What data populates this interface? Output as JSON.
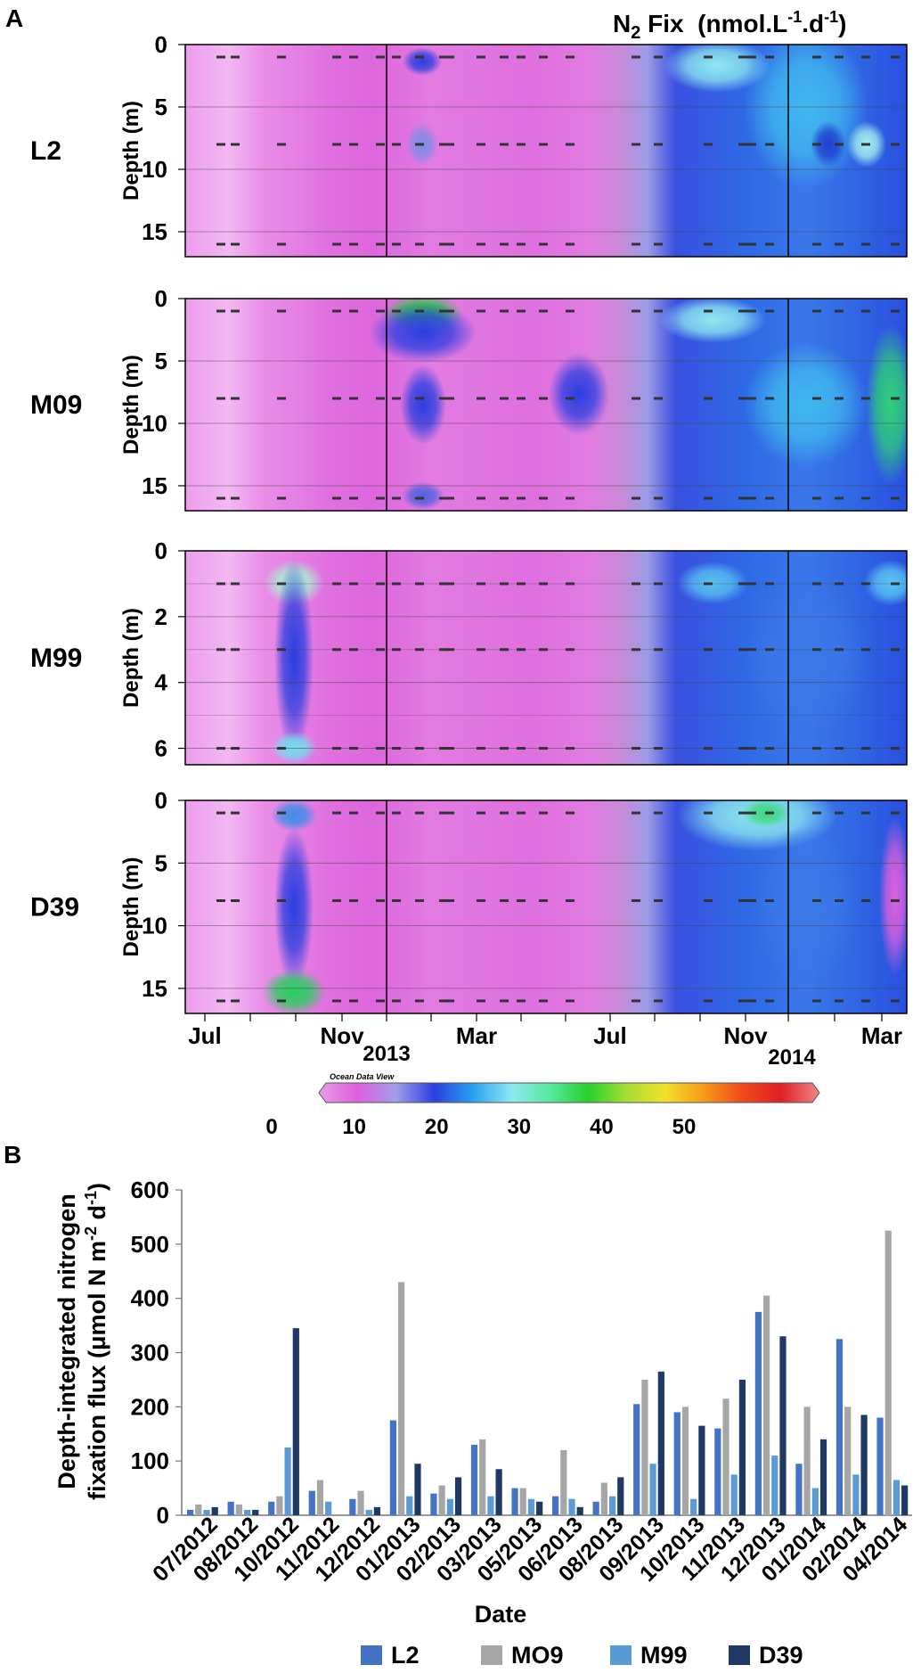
{
  "panel_a": {
    "label": "A",
    "title_prefix": "N",
    "title_sub": "2",
    "title_mid": " Fix  (nmol.L",
    "title_sup1": "-1",
    "title_dot": ".d",
    "title_sup2": "-1",
    "title_end": ")",
    "watermark": "Ocean Data View",
    "x_ticks": [
      "Jul",
      "Nov",
      "Mar",
      "Jul",
      "Nov",
      "Mar"
    ],
    "year_labels": [
      "2013",
      "2014"
    ],
    "colorbar": {
      "ticks": [
        "0",
        "10",
        "20",
        "30",
        "40",
        "50"
      ],
      "stops": [
        "#e79ee7",
        "#df5fdf",
        "#a29ee9",
        "#2b3fe0",
        "#28a2ee",
        "#8de8f0",
        "#58e8a0",
        "#27d02c",
        "#a8de35",
        "#f2e02c",
        "#f59a1a",
        "#ee4a1a",
        "#e01f26",
        "#ee8888"
      ]
    },
    "heatmaps": [
      {
        "station": "L2",
        "ylabel": "Depth (m)",
        "y_ticks": [
          "0",
          "5",
          "10",
          "15"
        ],
        "depth_range": [
          0,
          17
        ],
        "sample_depths": [
          1,
          8,
          16
        ]
      },
      {
        "station": "M09",
        "ylabel": "Depth (m)",
        "y_ticks": [
          "0",
          "5",
          "10",
          "15"
        ],
        "depth_range": [
          0,
          17
        ],
        "sample_depths": [
          1,
          8,
          16
        ]
      },
      {
        "station": "M99",
        "ylabel": "Depth (m)",
        "y_ticks": [
          "0",
          "2",
          "4",
          "6"
        ],
        "depth_range": [
          0,
          6.5
        ],
        "sample_depths": [
          1,
          3,
          6
        ]
      },
      {
        "station": "D39",
        "ylabel": "Depth (m)",
        "y_ticks": [
          "0",
          "5",
          "10",
          "15"
        ],
        "depth_range": [
          0,
          17
        ],
        "sample_depths": [
          1,
          8,
          16
        ]
      }
    ]
  },
  "chart_data": {
    "type": "bar",
    "label": "B",
    "title": "",
    "xlabel": "Date",
    "ylabel_line1": "Depth-integrated nitrogen",
    "ylabel_line2": "fixation flux (μmol N m",
    "ylabel_sup1": "-2",
    "ylabel_mid": " d",
    "ylabel_sup2": "-1",
    "ylabel_end": ")",
    "ylim": [
      0,
      600
    ],
    "y_ticks": [
      "0",
      "100",
      "200",
      "300",
      "400",
      "500",
      "600"
    ],
    "categories": [
      "07/2012",
      "08/2012",
      "10/2012",
      "11/2012",
      "12/2012",
      "01/2013",
      "02/2013",
      "03/2013",
      "05/2013",
      "06/2013",
      "08/2013",
      "09/2013",
      "10/2013",
      "11/2013",
      "12/2013",
      "01/2014",
      "02/2014",
      "04/2014"
    ],
    "series": [
      {
        "name": "L2",
        "color": "#4472c4",
        "values": [
          10,
          25,
          25,
          45,
          30,
          175,
          40,
          130,
          50,
          35,
          25,
          205,
          190,
          160,
          375,
          95,
          325,
          180
        ]
      },
      {
        "name": "MO9",
        "color": "#a6a6a6",
        "values": [
          20,
          20,
          35,
          65,
          45,
          430,
          55,
          140,
          50,
          120,
          60,
          250,
          200,
          215,
          405,
          200,
          200,
          525
        ]
      },
      {
        "name": "M99",
        "color": "#5b9bd5",
        "values": [
          10,
          10,
          125,
          25,
          10,
          35,
          30,
          35,
          30,
          30,
          35,
          95,
          30,
          75,
          110,
          50,
          75,
          65
        ]
      },
      {
        "name": "D39",
        "color": "#203864",
        "values": [
          15,
          10,
          345,
          0,
          15,
          95,
          70,
          85,
          25,
          15,
          70,
          265,
          165,
          250,
          330,
          140,
          185,
          55
        ]
      }
    ]
  }
}
